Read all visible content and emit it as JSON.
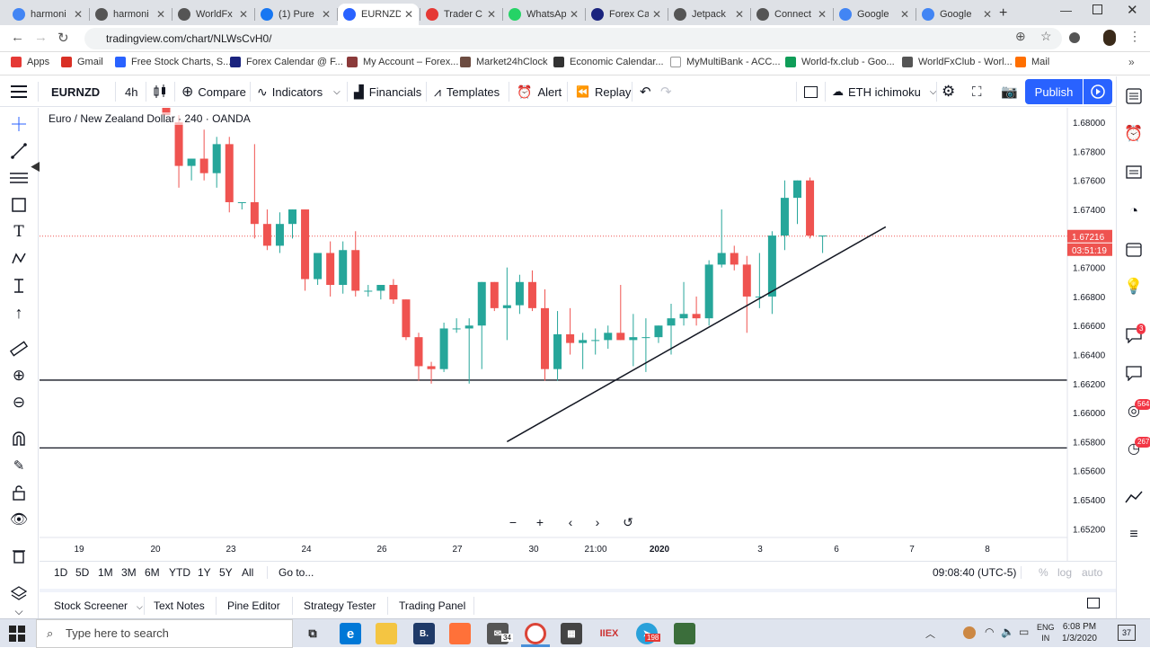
{
  "browser": {
    "tabs": [
      {
        "title": "harmoni",
        "color": "#4285f4",
        "active": false
      },
      {
        "title": "harmoni",
        "color": "#555555",
        "active": false
      },
      {
        "title": "WorldFx",
        "color": "#555555",
        "active": false
      },
      {
        "title": "(1) Pure",
        "color": "#1877f2",
        "active": false
      },
      {
        "title": "EURNZD",
        "color": "#2962ff",
        "active": true
      },
      {
        "title": "Trader C",
        "color": "#e53935",
        "active": false
      },
      {
        "title": "WhatsAp",
        "color": "#25d366",
        "active": false
      },
      {
        "title": "Forex Ca",
        "color": "#1a237e",
        "active": false
      },
      {
        "title": "Jetpack",
        "color": "#555555",
        "active": false
      },
      {
        "title": "Connect",
        "color": "#555555",
        "active": false
      },
      {
        "title": "Google",
        "color": "#4285f4",
        "active": false
      },
      {
        "title": "Google",
        "color": "#4285f4",
        "active": false
      }
    ],
    "url": "tradingview.com/chart/NLWsCvH0/",
    "bookmarks": [
      {
        "label": "Apps",
        "color": "#e53935"
      },
      {
        "label": "Gmail",
        "color": "#d93025"
      },
      {
        "label": "Free Stock Charts, S...",
        "color": "#2962ff"
      },
      {
        "label": "Forex Calendar @ F...",
        "color": "#1a237e"
      },
      {
        "label": "My Account – Forex...",
        "color": "#8b3a3a"
      },
      {
        "label": "Market24hClock",
        "color": "#6d4c41"
      },
      {
        "label": "Economic Calendar...",
        "color": "#333333"
      },
      {
        "label": "MyMultiBank - ACC...",
        "color": "#ffffff"
      },
      {
        "label": "World-fx.club - Goo...",
        "color": "#0f9d58"
      },
      {
        "label": "WorldFxClub - Worl...",
        "color": "#555555"
      },
      {
        "label": "Mail",
        "color": "#ff6f00"
      }
    ]
  },
  "toolbar": {
    "symbol": "EURNZD",
    "interval": "4h",
    "compare": "Compare",
    "indicators": "Indicators",
    "financials": "Financials",
    "templates": "Templates",
    "alert": "Alert",
    "replay": "Replay",
    "layout_name": "ETH ichimoku",
    "publish": "Publish"
  },
  "legend": {
    "text": "Euro / New Zealand Dollar · 240 · OANDA"
  },
  "chart_data": {
    "type": "candlestick",
    "symbol": "EURNZD",
    "timeframe": "240",
    "source": "OANDA",
    "ylim": [
      1.6514,
      1.681
    ],
    "y_ticks": [
      "1.68000",
      "1.67800",
      "1.67600",
      "1.67400",
      "1.67200",
      "1.67000",
      "1.66800",
      "1.66600",
      "1.66400",
      "1.66200",
      "1.66000",
      "1.65800",
      "1.65600",
      "1.65400",
      "1.65200"
    ],
    "x_ticks": [
      "19",
      "20",
      "23",
      "24",
      "26",
      "27",
      "30",
      "21:00",
      "2020",
      "3",
      "6",
      "7",
      "8"
    ],
    "current_price": "1.67216",
    "countdown": "03:51:19",
    "candles": [
      {
        "o": 1.681,
        "h": 1.6815,
        "l": 1.6805,
        "c": 1.6805
      },
      {
        "o": 1.68,
        "h": 1.6805,
        "l": 1.6755,
        "c": 1.677
      },
      {
        "o": 1.677,
        "h": 1.6775,
        "l": 1.676,
        "c": 1.6775
      },
      {
        "o": 1.6775,
        "h": 1.6795,
        "l": 1.676,
        "c": 1.6765
      },
      {
        "o": 1.6765,
        "h": 1.679,
        "l": 1.6755,
        "c": 1.6785
      },
      {
        "o": 1.6785,
        "h": 1.679,
        "l": 1.6738,
        "c": 1.6745
      },
      {
        "o": 1.6745,
        "h": 1.6745,
        "l": 1.674,
        "c": 1.6745
      },
      {
        "o": 1.6745,
        "h": 1.6785,
        "l": 1.672,
        "c": 1.673
      },
      {
        "o": 1.673,
        "h": 1.674,
        "l": 1.6712,
        "c": 1.6715
      },
      {
        "o": 1.6715,
        "h": 1.6738,
        "l": 1.671,
        "c": 1.673
      },
      {
        "o": 1.673,
        "h": 1.674,
        "l": 1.672,
        "c": 1.674
      },
      {
        "o": 1.674,
        "h": 1.674,
        "l": 1.6684,
        "c": 1.6692
      },
      {
        "o": 1.6692,
        "h": 1.671,
        "l": 1.6688,
        "c": 1.671
      },
      {
        "o": 1.671,
        "h": 1.6718,
        "l": 1.668,
        "c": 1.6688
      },
      {
        "o": 1.6688,
        "h": 1.6718,
        "l": 1.6682,
        "c": 1.6712
      },
      {
        "o": 1.6712,
        "h": 1.6725,
        "l": 1.668,
        "c": 1.6684
      },
      {
        "o": 1.6684,
        "h": 1.6688,
        "l": 1.668,
        "c": 1.6684
      },
      {
        "o": 1.6684,
        "h": 1.6688,
        "l": 1.6678,
        "c": 1.6688
      },
      {
        "o": 1.6688,
        "h": 1.6692,
        "l": 1.6675,
        "c": 1.6678
      },
      {
        "o": 1.6678,
        "h": 1.6678,
        "l": 1.665,
        "c": 1.6652
      },
      {
        "o": 1.6652,
        "h": 1.6655,
        "l": 1.6622,
        "c": 1.6632
      },
      {
        "o": 1.6632,
        "h": 1.6635,
        "l": 1.662,
        "c": 1.663
      },
      {
        "o": 1.663,
        "h": 1.6662,
        "l": 1.6628,
        "c": 1.6658
      },
      {
        "o": 1.6658,
        "h": 1.6665,
        "l": 1.6655,
        "c": 1.6658
      },
      {
        "o": 1.6658,
        "h": 1.6665,
        "l": 1.662,
        "c": 1.666
      },
      {
        "o": 1.666,
        "h": 1.669,
        "l": 1.663,
        "c": 1.669
      },
      {
        "o": 1.669,
        "h": 1.669,
        "l": 1.667,
        "c": 1.6672
      },
      {
        "o": 1.6672,
        "h": 1.67,
        "l": 1.665,
        "c": 1.6674
      },
      {
        "o": 1.6674,
        "h": 1.6695,
        "l": 1.6668,
        "c": 1.669
      },
      {
        "o": 1.669,
        "h": 1.6698,
        "l": 1.667,
        "c": 1.6672
      },
      {
        "o": 1.6672,
        "h": 1.6685,
        "l": 1.6622,
        "c": 1.663
      },
      {
        "o": 1.663,
        "h": 1.667,
        "l": 1.6622,
        "c": 1.6654
      },
      {
        "o": 1.6654,
        "h": 1.6672,
        "l": 1.664,
        "c": 1.6648
      },
      {
        "o": 1.6648,
        "h": 1.6655,
        "l": 1.663,
        "c": 1.665
      },
      {
        "o": 1.665,
        "h": 1.6658,
        "l": 1.664,
        "c": 1.665
      },
      {
        "o": 1.665,
        "h": 1.666,
        "l": 1.6644,
        "c": 1.6655
      },
      {
        "o": 1.6655,
        "h": 1.6688,
        "l": 1.665,
        "c": 1.665
      },
      {
        "o": 1.665,
        "h": 1.6668,
        "l": 1.6632,
        "c": 1.6652
      },
      {
        "o": 1.6652,
        "h": 1.6665,
        "l": 1.6628,
        "c": 1.6652
      },
      {
        "o": 1.6652,
        "h": 1.666,
        "l": 1.6648,
        "c": 1.666
      },
      {
        "o": 1.666,
        "h": 1.6675,
        "l": 1.664,
        "c": 1.6665
      },
      {
        "o": 1.6665,
        "h": 1.669,
        "l": 1.666,
        "c": 1.6668
      },
      {
        "o": 1.6668,
        "h": 1.668,
        "l": 1.666,
        "c": 1.6665
      },
      {
        "o": 1.6665,
        "h": 1.6705,
        "l": 1.666,
        "c": 1.6702
      },
      {
        "o": 1.6702,
        "h": 1.674,
        "l": 1.67,
        "c": 1.671
      },
      {
        "o": 1.671,
        "h": 1.6715,
        "l": 1.6698,
        "c": 1.6702
      },
      {
        "o": 1.6702,
        "h": 1.6708,
        "l": 1.6655,
        "c": 1.668
      },
      {
        "o": 1.668,
        "h": 1.671,
        "l": 1.6672,
        "c": 1.668
      },
      {
        "o": 1.668,
        "h": 1.6725,
        "l": 1.6668,
        "c": 1.6722
      },
      {
        "o": 1.6722,
        "h": 1.676,
        "l": 1.6712,
        "c": 1.6748
      },
      {
        "o": 1.6748,
        "h": 1.676,
        "l": 1.673,
        "c": 1.676
      },
      {
        "o": 1.676,
        "h": 1.6762,
        "l": 1.672,
        "c": 1.6722
      },
      {
        "o": 1.6722,
        "h": 1.6722,
        "l": 1.671,
        "c": 1.6722
      }
    ],
    "horizontal_lines": [
      1.66224,
      1.65757
    ],
    "trendline": {
      "from": {
        "x_candle": 27,
        "y": 1.658
      },
      "to": {
        "x_candle": 57,
        "y": 1.6728
      }
    },
    "up_color": "#26a69a",
    "down_color": "#ef5350"
  },
  "nav": {
    "zoom_out": "−",
    "zoom_in": "+",
    "left": "‹",
    "right": "›",
    "reset": "↺"
  },
  "ranges": [
    "1D",
    "5D",
    "1M",
    "3M",
    "6M",
    "YTD",
    "1Y",
    "5Y",
    "All"
  ],
  "goto": "Go to...",
  "clock_text": "09:08:40 (UTC-5)",
  "scale_opts": {
    "percent": "%",
    "log": "log",
    "auto": "auto"
  },
  "panels": [
    "Stock Screener",
    "Text Notes",
    "Pine Editor",
    "Strategy Tester",
    "Trading Panel"
  ],
  "right_badges": [
    "3",
    "564",
    "267"
  ],
  "taskbar": {
    "search": "Type here to search",
    "mail_badge": "34",
    "tg_badge": "198",
    "lang1": "ENG",
    "lang2": "IN",
    "time": "6:08 PM",
    "date": "1/3/2020",
    "notif": "37"
  }
}
